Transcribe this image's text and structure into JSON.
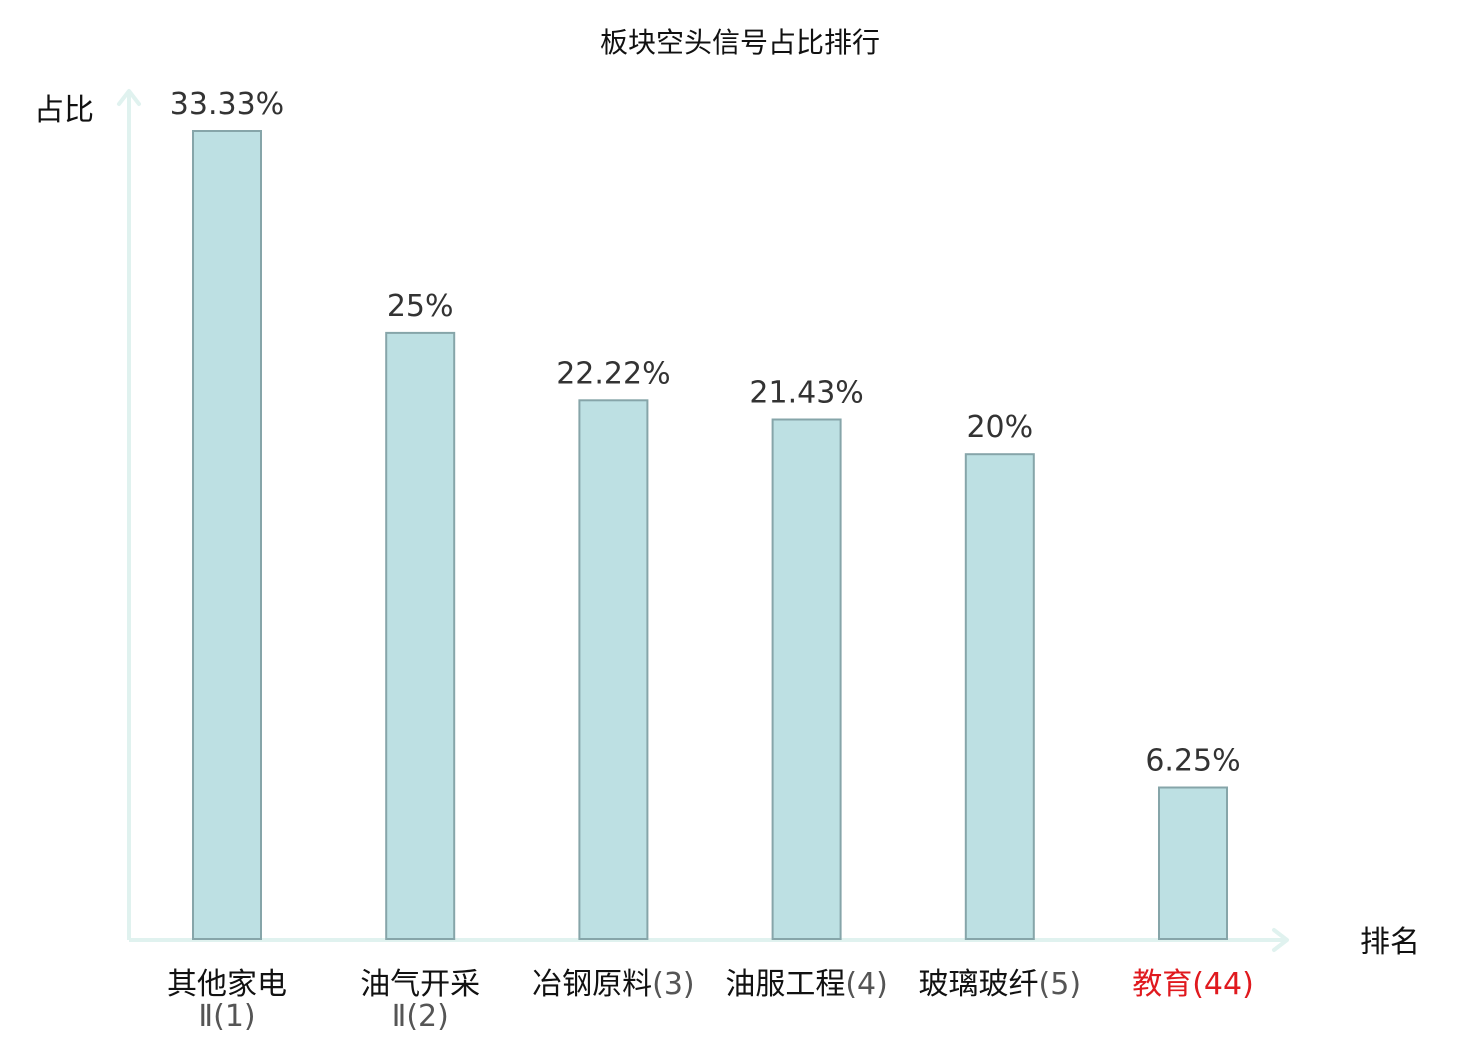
{
  "chart_data": {
    "type": "bar",
    "title": "板块空头信号占比排行",
    "ylabel": "占比",
    "xlabel": "排名",
    "ylim": [
      0,
      35
    ],
    "grid": false,
    "legend": "none",
    "categories": [
      {
        "name_lines": [
          "其他家电",
          "Ⅱ"
        ],
        "rank": "(1)",
        "highlight": false
      },
      {
        "name_lines": [
          "油气开采",
          "Ⅱ"
        ],
        "rank": "(2)",
        "highlight": false
      },
      {
        "name_lines": [
          "冶钢原料"
        ],
        "rank": "(3)",
        "highlight": false
      },
      {
        "name_lines": [
          "油服工程"
        ],
        "rank": "(4)",
        "highlight": false
      },
      {
        "name_lines": [
          "玻璃玻纤"
        ],
        "rank": "(5)",
        "highlight": false
      },
      {
        "name_lines": [
          "教育"
        ],
        "rank": "(44)",
        "highlight": true
      }
    ],
    "values": [
      33.33,
      25,
      22.22,
      21.43,
      20,
      6.25
    ],
    "value_labels": [
      "33.33%",
      "25%",
      "22.22%",
      "21.43%",
      "20%",
      "6.25%"
    ]
  },
  "colors": {
    "bar_fill": "#bde0e3",
    "bar_stroke": "#86a5a9",
    "axis": "#e0f2ef",
    "text": "#333333",
    "label": "#111111",
    "rank": "#555555",
    "highlight": "#e0191e"
  }
}
